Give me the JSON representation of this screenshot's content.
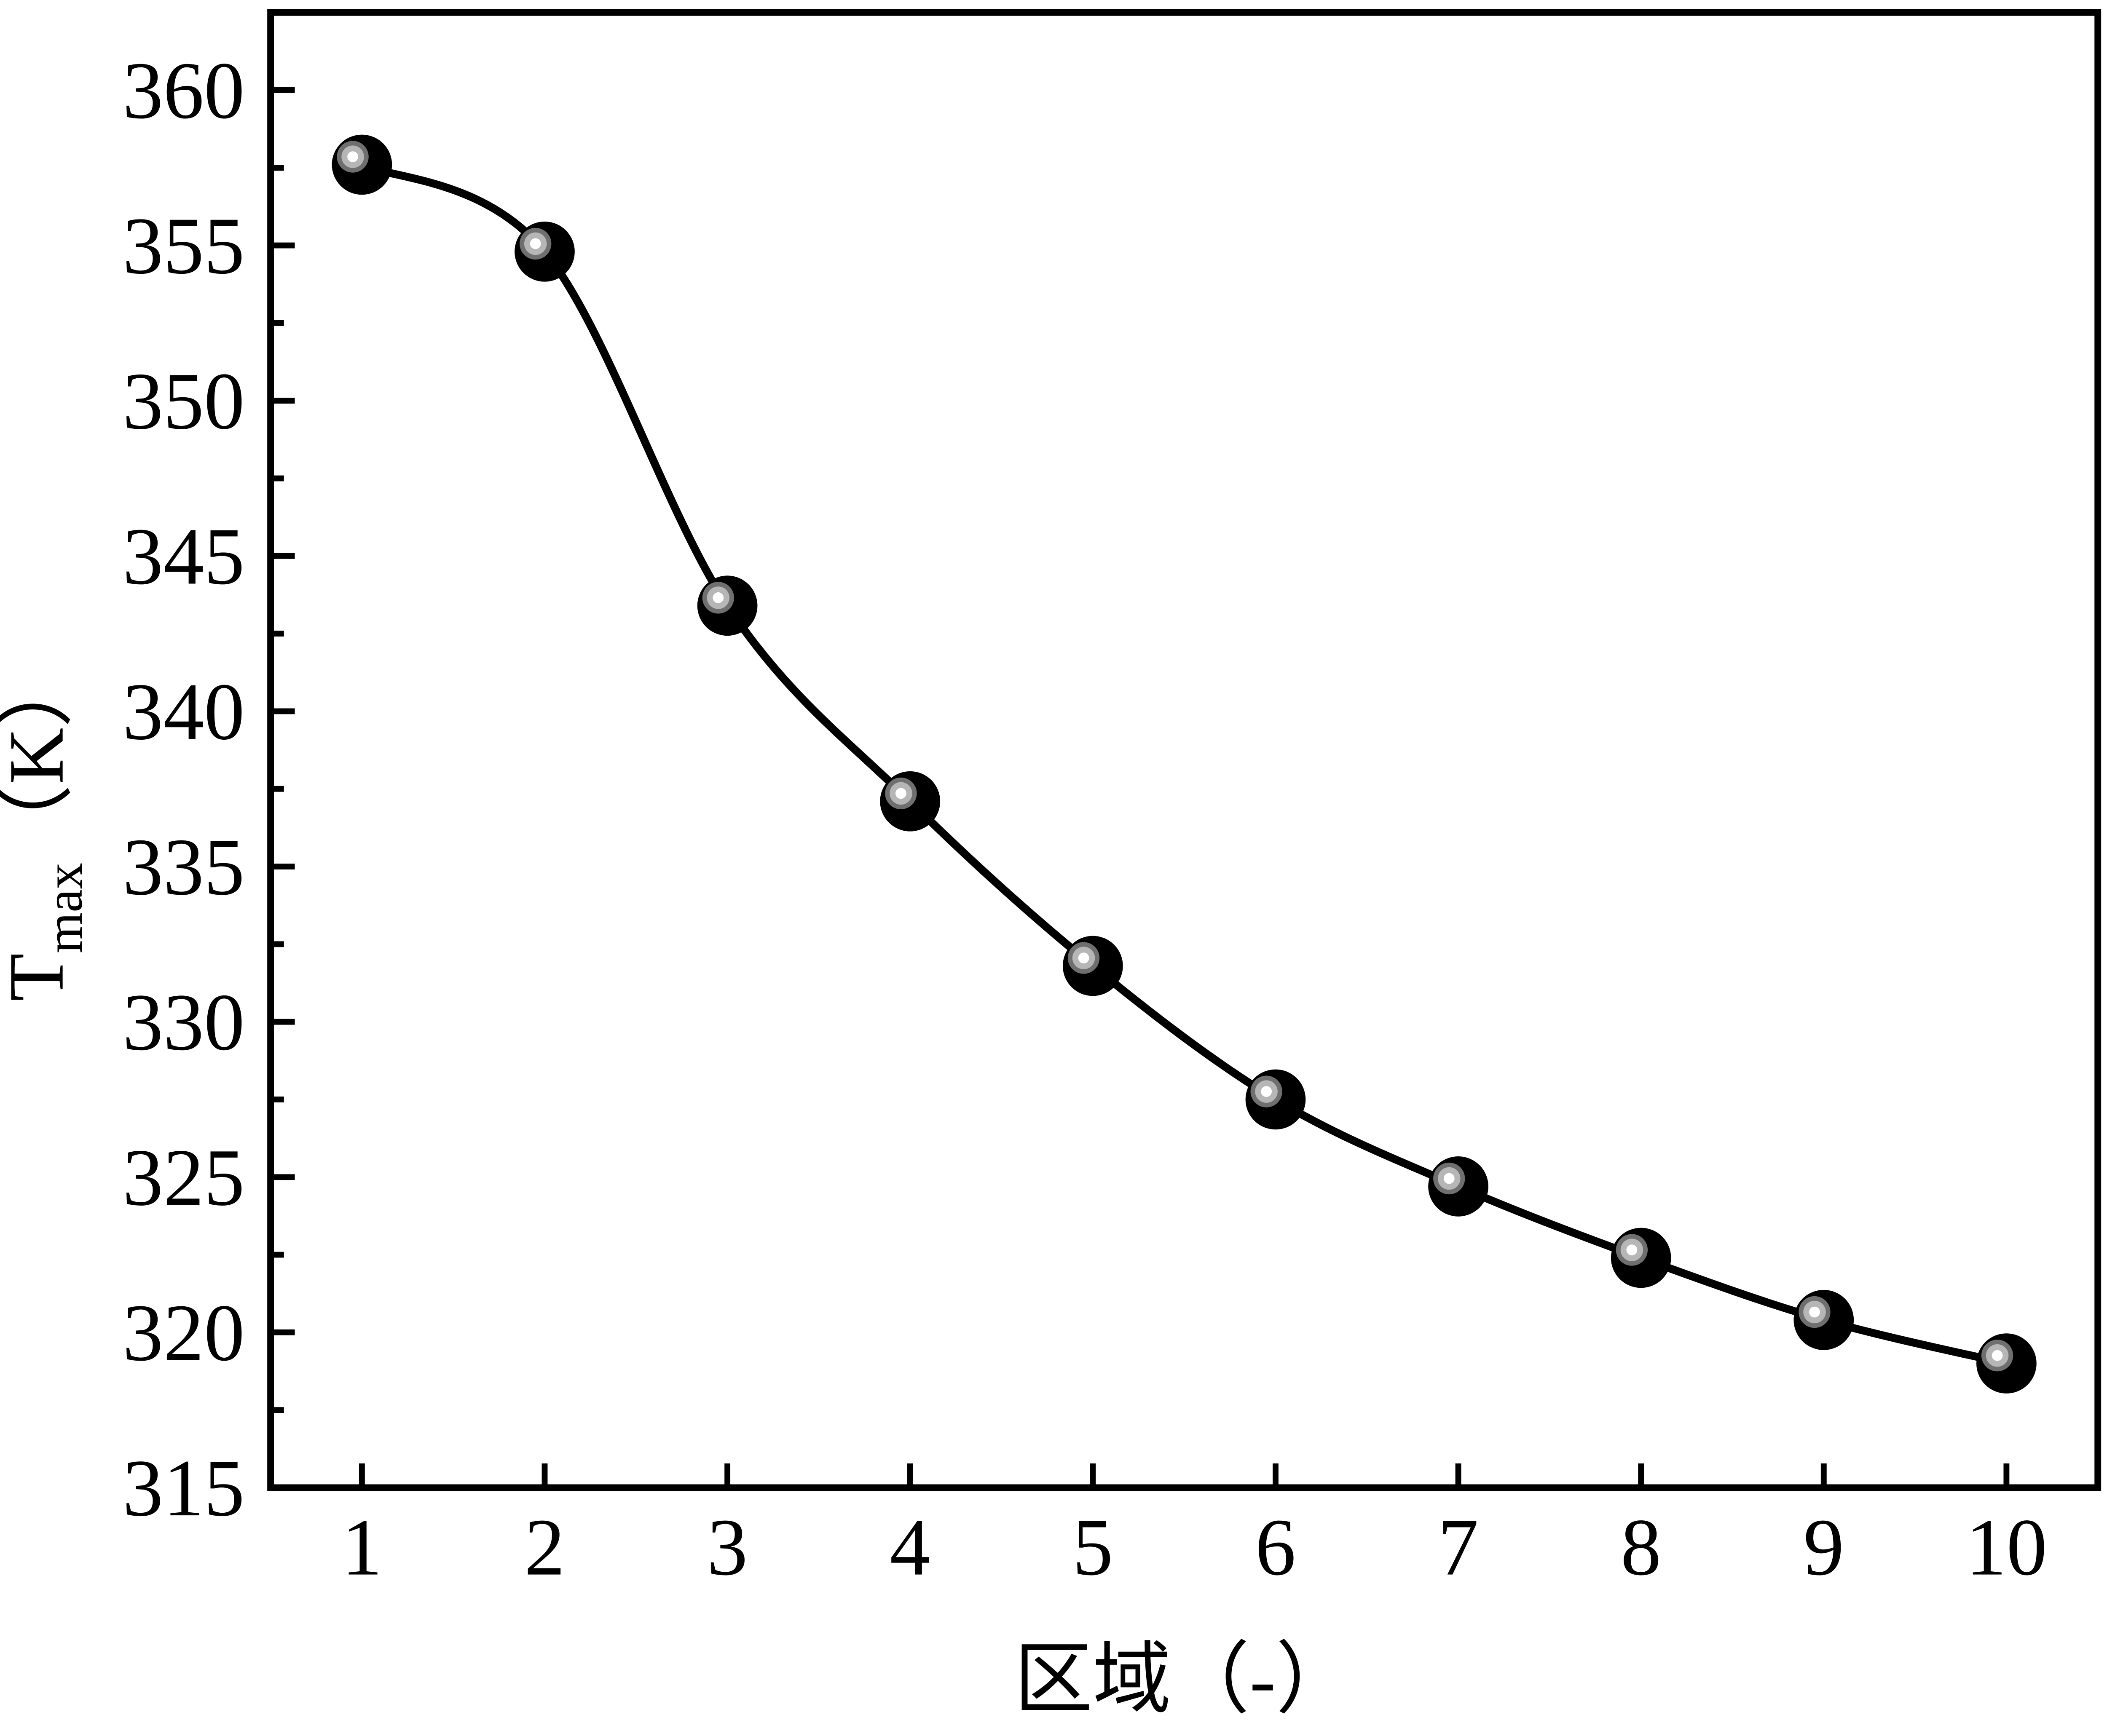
{
  "chart_data": {
    "type": "line",
    "title": "",
    "xlabel": "区域（-）",
    "ylabel": "Tmax（K）",
    "ylabel_parts": {
      "symbol": "T",
      "subscript": "max",
      "unit": "（K）"
    },
    "x": [
      1,
      2,
      3,
      4,
      5,
      6,
      7,
      8,
      9,
      10
    ],
    "series": [
      {
        "name": "Tmax",
        "values": [
          357.6,
          354.8,
          343.4,
          337.1,
          331.8,
          327.5,
          324.7,
          322.4,
          320.4,
          319.0
        ]
      }
    ],
    "xlim": [
      0.5,
      10.5
    ],
    "ylim": [
      315,
      362.5
    ],
    "x_tick_labels": [
      "1",
      "2",
      "3",
      "4",
      "5",
      "6",
      "7",
      "8",
      "9",
      "10"
    ],
    "y_tick_labels": [
      "315",
      "320",
      "325",
      "330",
      "335",
      "340",
      "345",
      "350",
      "355",
      "360"
    ],
    "y_major_ticks": [
      315,
      320,
      325,
      330,
      335,
      340,
      345,
      350,
      355,
      360
    ],
    "y_minor_ticks": [
      317.5,
      322.5,
      327.5,
      332.5,
      337.5,
      342.5,
      347.5,
      352.5,
      357.5
    ],
    "grid": false,
    "legend": false,
    "line_color": "#000000",
    "marker_style": "shaded-sphere",
    "marker_colors": [
      "#000000",
      "#6f6f6f",
      "#b6b6b6",
      "#ffffff"
    ],
    "background": "#ffffff",
    "foreground": "#000000"
  }
}
